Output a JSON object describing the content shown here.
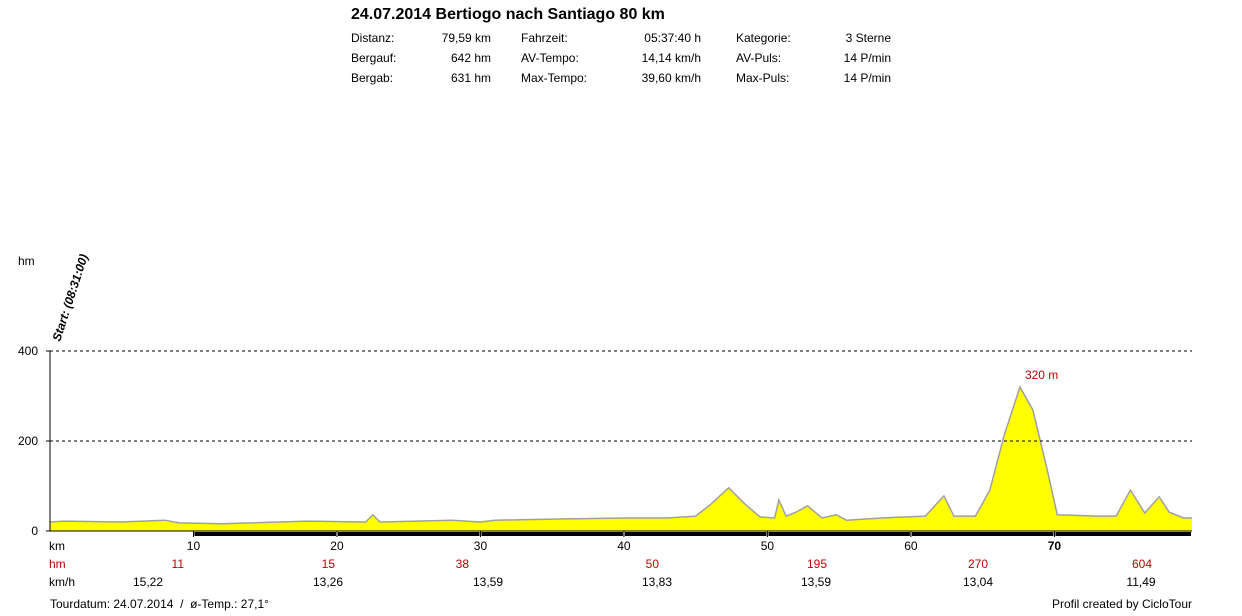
{
  "chart_data": {
    "type": "area",
    "title": "24.07.2014 Bertiogo nach Santiago 80 km",
    "info": [
      [
        "Distanz:",
        "79,59 km",
        "Fahrzeit:",
        "05:37:40 h",
        "Kategorie:",
        "3 Sterne"
      ],
      [
        "Bergauf:",
        "642 hm",
        "AV-Tempo:",
        "14,14 km/h",
        "AV-Puls:",
        "14 P/min"
      ],
      [
        "Bergab:",
        "631 hm",
        "Max-Tempo:",
        "39,60 km/h",
        "Max-Puls:",
        "14 P/min"
      ]
    ],
    "y_label": "hm",
    "x_label": "km",
    "start_label": "Start: (08:31:00)",
    "peak_label": "320 m",
    "x": [
      0,
      1,
      5,
      8,
      9,
      12,
      14,
      18,
      22,
      22.5,
      23,
      28,
      30,
      31,
      36,
      40,
      43,
      45,
      46,
      47.3,
      48.5,
      49.5,
      50.5,
      50.8,
      51.3,
      52,
      52.8,
      53.8,
      54.8,
      55.5,
      58,
      61,
      62.3,
      63,
      64.5,
      65.5,
      66.5,
      67.6,
      68.5,
      69.5,
      70.2,
      73,
      74.3,
      75.3,
      76.3,
      77.3,
      78,
      79,
      79.59
    ],
    "values": [
      20,
      22,
      20,
      24,
      18,
      16,
      18,
      22,
      20,
      36,
      20,
      24,
      20,
      24,
      27,
      29,
      29,
      33,
      58,
      96,
      58,
      31,
      29,
      69,
      33,
      42,
      56,
      29,
      36,
      24,
      29,
      33,
      78,
      33,
      33,
      91,
      213,
      320,
      269,
      136,
      36,
      33,
      33,
      91,
      40,
      76,
      42,
      29,
      29
    ],
    "color": "#ffff00",
    "line_color": "#a0a0a0",
    "xlim": [
      0,
      79.59
    ],
    "ylim": [
      0,
      400
    ],
    "xticks": [
      10,
      20,
      30,
      40,
      50,
      60,
      70
    ],
    "yticks": [
      0,
      200,
      400
    ],
    "grid_y": [
      200,
      400
    ],
    "hm_row_label": "hm",
    "hm_row": [
      "11",
      "15",
      "38",
      "50",
      "195",
      "270",
      "604"
    ],
    "speed_row_label": "km/h",
    "speed_row": [
      "15,22",
      "13,26",
      "13,59",
      "13,83",
      "13,59",
      "13,04",
      "11,49"
    ],
    "footer_left": "Tourdatum: 24.07.2014  /  ø-Temp.: 27,1°",
    "footer_right": "Profil created by CicloTour"
  }
}
